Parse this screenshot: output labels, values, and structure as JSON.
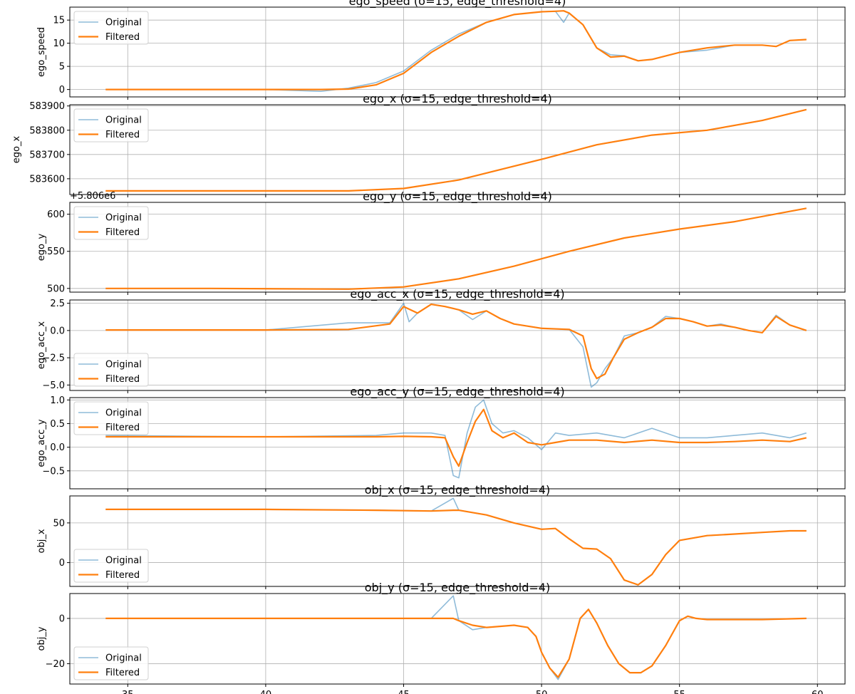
{
  "colors": {
    "original": "#1f77b4",
    "filtered": "#ff7f0e",
    "grid": "#b0b0b0"
  },
  "legend": {
    "original": "Original",
    "filtered": "Filtered"
  },
  "x_ticks": [
    "35",
    "40",
    "45",
    "50",
    "55",
    "60"
  ],
  "chart_data": [
    {
      "type": "line",
      "title": "ego_speed (σ=15, edge_threshold=4)",
      "ylabel": "ego_speed",
      "xlim": [
        32.9,
        61.0
      ],
      "ylim": [
        -1.6,
        17.8
      ],
      "yticks": [
        0,
        5,
        10,
        15
      ],
      "ytick_labels": [
        "0",
        "5",
        "10",
        "15"
      ],
      "legend_position": "upper left",
      "series": [
        {
          "name": "Filtered",
          "x": [
            34.2,
            40,
            42,
            43,
            44,
            45,
            46,
            47,
            48,
            49,
            50,
            50.5,
            50.8,
            51,
            51.5,
            52,
            52.5,
            53,
            53.5,
            54,
            55,
            56,
            57,
            58,
            58.5,
            59,
            59.6
          ],
          "y": [
            0,
            0,
            0,
            0.1,
            1,
            3.5,
            8,
            11.5,
            14.5,
            16.2,
            16.8,
            16.9,
            17,
            16.5,
            14,
            9,
            7,
            7.2,
            6.2,
            6.5,
            8,
            9,
            9.6,
            9.6,
            9.3,
            10.6,
            10.8
          ]
        },
        {
          "name": "Original",
          "x": [
            34.2,
            40,
            42,
            43,
            44,
            45,
            46,
            47,
            48,
            49,
            50,
            50.5,
            50.8,
            51,
            51.5,
            52,
            52.5,
            53,
            53.5,
            54,
            55,
            56,
            57,
            58,
            58.5,
            59,
            59.6
          ],
          "y": [
            0,
            0,
            -0.4,
            0.3,
            1.5,
            4,
            8.5,
            12,
            14.5,
            16.2,
            16.8,
            16.9,
            14.5,
            16.5,
            14,
            9,
            7.5,
            7.3,
            6.2,
            6.5,
            8,
            8.5,
            9.6,
            9.6,
            9.3,
            10.6,
            10.8
          ]
        }
      ]
    },
    {
      "type": "line",
      "title": "ego_x (σ=15, edge_threshold=4)",
      "ylabel": "ego_x",
      "xlim": [
        32.9,
        61.0
      ],
      "ylim": [
        583535,
        583905
      ],
      "yticks": [
        583600,
        583700,
        583800,
        583900
      ],
      "ytick_labels": [
        "583600",
        "583700",
        "583800",
        "583900"
      ],
      "legend_position": "upper left",
      "series": [
        {
          "name": "Original",
          "x": [
            34.2,
            38,
            43,
            45,
            47,
            50,
            52,
            54,
            56,
            58,
            59.6
          ],
          "y": [
            583550,
            583550,
            583550,
            583560,
            583595,
            583680,
            583740,
            583780,
            583800,
            583840,
            583885
          ]
        },
        {
          "name": "Filtered",
          "x": [
            34.2,
            38,
            43,
            45,
            47,
            50,
            52,
            54,
            56,
            58,
            59.6
          ],
          "y": [
            583550,
            583550,
            583550,
            583560,
            583595,
            583680,
            583740,
            583780,
            583800,
            583840,
            583885
          ]
        }
      ]
    },
    {
      "type": "line",
      "title": "ego_y (σ=15, edge_threshold=4)",
      "ylabel": "ego_y",
      "offset_text": "+5.806e6",
      "xlim": [
        32.9,
        61.0
      ],
      "ylim": [
        495,
        616
      ],
      "yticks": [
        500,
        550,
        600
      ],
      "ytick_labels": [
        "500",
        "550",
        "600"
      ],
      "legend_position": "upper left",
      "series": [
        {
          "name": "Original",
          "x": [
            34.2,
            38,
            43,
            45,
            47,
            49,
            51,
            53,
            55,
            57,
            59.6
          ],
          "y": [
            500,
            500,
            499,
            502,
            513,
            530,
            550,
            568,
            580,
            590,
            608
          ]
        },
        {
          "name": "Filtered",
          "x": [
            34.2,
            38,
            43,
            45,
            47,
            49,
            51,
            53,
            55,
            57,
            59.6
          ],
          "y": [
            500,
            500,
            499,
            502,
            513,
            530,
            550,
            568,
            580,
            590,
            608
          ]
        }
      ]
    },
    {
      "type": "line",
      "title": "ego_acc_x (σ=15, edge_threshold=4)",
      "ylabel": "ego_acc_x",
      "xlim": [
        32.9,
        61.0
      ],
      "ylim": [
        -5.5,
        2.8
      ],
      "yticks": [
        -5.0,
        -2.5,
        0.0,
        2.5
      ],
      "ytick_labels": [
        "−5.0",
        "−2.5",
        "0.0",
        "2.5"
      ],
      "legend_position": "lower left",
      "series": [
        {
          "name": "Filtered",
          "x": [
            34.2,
            40,
            43,
            44.5,
            45,
            45.5,
            46,
            46.5,
            47,
            47.5,
            48,
            48.5,
            49,
            50,
            51,
            51.5,
            51.8,
            52,
            52.3,
            52.6,
            53,
            53.5,
            54,
            54.5,
            55,
            55.5,
            56,
            56.5,
            57,
            57.5,
            58,
            58.5,
            59,
            59.6
          ],
          "y": [
            0.05,
            0.05,
            0.1,
            0.6,
            2.2,
            1.6,
            2.4,
            2.2,
            1.9,
            1.5,
            1.8,
            1.1,
            0.6,
            0.2,
            0.1,
            -0.5,
            -3.5,
            -4.4,
            -4,
            -2.5,
            -0.8,
            -0.2,
            0.3,
            1.1,
            1.1,
            0.8,
            0.4,
            0.5,
            0.3,
            0,
            -0.2,
            1.3,
            0.5,
            0
          ]
        },
        {
          "name": "Original",
          "x": [
            34.2,
            40,
            43,
            44.5,
            45,
            45.2,
            45.5,
            46,
            46.5,
            47,
            47.5,
            48,
            48.5,
            49,
            50,
            51,
            51.5,
            51.8,
            52,
            52.3,
            52.6,
            53,
            53.5,
            54,
            54.5,
            55,
            55.5,
            56,
            56.5,
            57,
            57.5,
            58,
            58.5,
            59,
            59.6
          ],
          "y": [
            0.05,
            0.05,
            0.7,
            0.7,
            2.5,
            0.8,
            1.6,
            2.4,
            2.2,
            1.9,
            1.0,
            1.8,
            1.1,
            0.6,
            0.2,
            0.1,
            -1.5,
            -5.2,
            -4.8,
            -3.5,
            -2.5,
            -0.5,
            -0.2,
            0.3,
            1.3,
            1.1,
            0.8,
            0.4,
            0.6,
            0.3,
            0,
            -0.2,
            1.4,
            0.5,
            0
          ]
        }
      ]
    },
    {
      "type": "line",
      "title": "ego_acc_y (σ=15, edge_threshold=4)",
      "ylabel": "ego_acc_y",
      "xlim": [
        32.9,
        61.0
      ],
      "ylim": [
        -0.88,
        1.05
      ],
      "yticks": [
        -0.5,
        0.0,
        0.5,
        1.0
      ],
      "ytick_labels": [
        "−0.5",
        "0.0",
        "0.5",
        "1.0"
      ],
      "legend_position": "upper left",
      "series": [
        {
          "name": "Filtered",
          "x": [
            34.2,
            40,
            44,
            45,
            46,
            46.5,
            46.8,
            47,
            47.3,
            47.6,
            47.9,
            48.2,
            48.6,
            49,
            49.5,
            50,
            50.5,
            51,
            52,
            53,
            54,
            55,
            56,
            57,
            58,
            59,
            59.6
          ],
          "y": [
            0.22,
            0.22,
            0.22,
            0.23,
            0.22,
            0.2,
            -0.2,
            -0.4,
            0.1,
            0.55,
            0.8,
            0.35,
            0.2,
            0.3,
            0.1,
            0.05,
            0.1,
            0.15,
            0.15,
            0.1,
            0.15,
            0.1,
            0.1,
            0.12,
            0.15,
            0.12,
            0.2
          ]
        },
        {
          "name": "Original",
          "x": [
            34.2,
            40,
            44,
            45,
            46,
            46.5,
            46.8,
            47,
            47.3,
            47.6,
            47.9,
            48.2,
            48.6,
            49,
            49.5,
            50,
            50.5,
            51,
            52,
            53,
            54,
            55,
            56,
            57,
            58,
            59,
            59.6
          ],
          "y": [
            0.25,
            0.22,
            0.25,
            0.3,
            0.3,
            0.25,
            -0.6,
            -0.65,
            0.3,
            0.85,
            1.0,
            0.5,
            0.3,
            0.35,
            0.2,
            -0.05,
            0.3,
            0.25,
            0.3,
            0.2,
            0.4,
            0.2,
            0.2,
            0.25,
            0.3,
            0.2,
            0.3
          ]
        }
      ]
    },
    {
      "type": "line",
      "title": "obj_x (σ=15, edge_threshold=4)",
      "ylabel": "obj_x",
      "xlim": [
        32.9,
        61.0
      ],
      "ylim": [
        -30,
        84
      ],
      "yticks": [
        0,
        50
      ],
      "ytick_labels": [
        "0",
        "50"
      ],
      "legend_position": "lower left",
      "series": [
        {
          "name": "Original",
          "x": [
            34.2,
            40,
            44,
            46,
            46.8,
            47,
            48,
            49,
            50,
            50.5,
            51,
            51.5,
            52,
            52.5,
            53,
            53.5,
            54,
            54.5,
            55,
            56,
            57,
            58,
            59,
            59.6
          ],
          "y": [
            67,
            67,
            66,
            65,
            81,
            66,
            60,
            50,
            42,
            43,
            30,
            18,
            17,
            5,
            -22,
            -28,
            -15,
            10,
            28,
            34,
            36,
            38,
            40,
            40
          ]
        },
        {
          "name": "Filtered",
          "x": [
            34.2,
            40,
            44,
            46,
            46.8,
            47,
            48,
            49,
            50,
            50.5,
            51,
            51.5,
            52,
            52.5,
            53,
            53.5,
            54,
            54.5,
            55,
            56,
            57,
            58,
            59,
            59.6
          ],
          "y": [
            67,
            67,
            66,
            65,
            66,
            66,
            60,
            50,
            42,
            43,
            30,
            18,
            17,
            5,
            -22,
            -28,
            -15,
            10,
            28,
            34,
            36,
            38,
            40,
            40
          ]
        }
      ]
    },
    {
      "type": "line",
      "title": "obj_y (σ=15, edge_threshold=4)",
      "ylabel": "obj_y",
      "xlim": [
        32.9,
        61.0
      ],
      "ylim": [
        -29,
        11
      ],
      "yticks": [
        -20,
        0
      ],
      "ytick_labels": [
        "−20",
        "0"
      ],
      "legend_position": "lower left",
      "series": [
        {
          "name": "Original",
          "x": [
            34.2,
            44,
            46,
            46.8,
            47,
            47.5,
            48,
            49,
            49.5,
            49.8,
            50,
            50.3,
            50.6,
            51,
            51.4,
            51.7,
            52,
            52.4,
            52.8,
            53.2,
            53.6,
            54,
            54.5,
            55,
            55.3,
            55.6,
            56,
            57,
            58,
            59.6
          ],
          "y": [
            0,
            0,
            0,
            10,
            -1,
            -5,
            -4,
            -3,
            -4,
            -8,
            -15,
            -22,
            -27,
            -18,
            0,
            4,
            -2,
            -12,
            -20,
            -24,
            -24,
            -21,
            -12,
            -1,
            1,
            0,
            -0.5,
            -0.5,
            -0.5,
            0
          ]
        },
        {
          "name": "Filtered",
          "x": [
            34.2,
            44,
            46,
            46.8,
            47,
            47.5,
            48,
            49,
            49.5,
            49.8,
            50,
            50.3,
            50.6,
            51,
            51.4,
            51.7,
            52,
            52.4,
            52.8,
            53.2,
            53.6,
            54,
            54.5,
            55,
            55.3,
            55.6,
            56,
            57,
            58,
            59.6
          ],
          "y": [
            0,
            0,
            0,
            0,
            -1,
            -3,
            -4,
            -3,
            -4,
            -8,
            -15,
            -22,
            -26,
            -18,
            0,
            4,
            -2,
            -12,
            -20,
            -24,
            -24,
            -21,
            -12,
            -1,
            1,
            0,
            -0.5,
            -0.5,
            -0.5,
            0
          ]
        }
      ]
    }
  ]
}
